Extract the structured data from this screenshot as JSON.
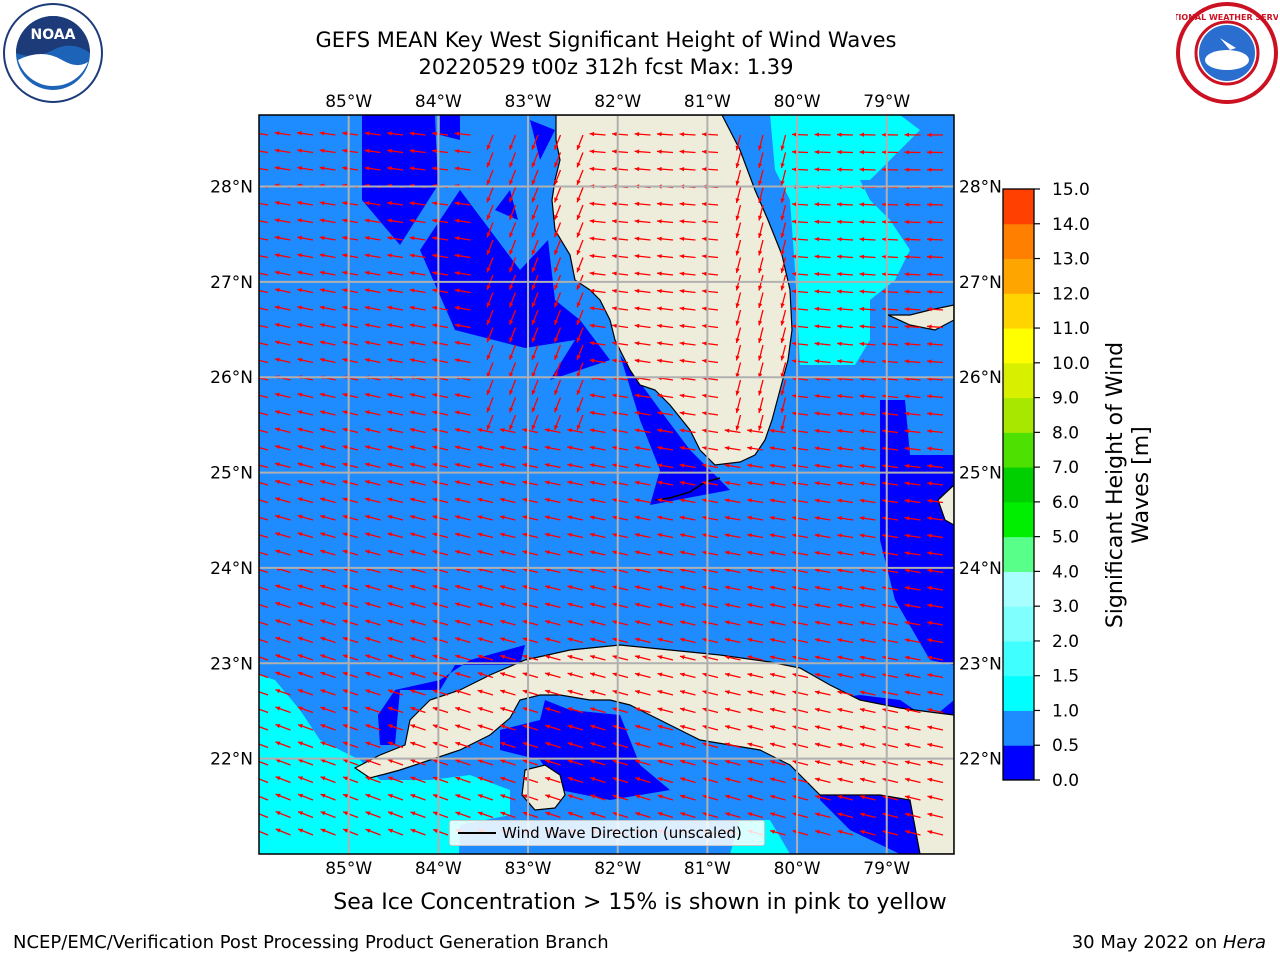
{
  "title": {
    "line1": "GEFS MEAN Key West Significant Height of Wind Waves",
    "line2": "20220529 t00z 312h fcst   Max: 1.39"
  },
  "logos": {
    "left": "noaa-logo",
    "right": "nws-logo",
    "left_text": "NOAA",
    "right_text": "NATIONAL WEATHER SERVICE"
  },
  "map": {
    "lon_labels": [
      "85°W",
      "84°W",
      "83°W",
      "82°W",
      "81°W",
      "80°W",
      "79°W"
    ],
    "lat_labels": [
      "28°N",
      "27°N",
      "26°N",
      "25°N",
      "24°N",
      "23°N",
      "22°N"
    ],
    "lon_values": [
      -85,
      -84,
      -83,
      -82,
      -81,
      -80,
      -79
    ],
    "lat_values": [
      28,
      27,
      26,
      25,
      24,
      23,
      22
    ],
    "extent": {
      "lon_min": -86.0,
      "lon_max": -78.25,
      "lat_min": 21.0,
      "lat_max": 28.75
    },
    "arrow_color": "#ff0000",
    "land_color": "#eeeddc",
    "gridline_color": "#b0b0b0"
  },
  "legend": {
    "label": "Wind Wave Direction (unscaled)"
  },
  "colorbar": {
    "title": "Significant Height of Wind Waves [m]",
    "ticks": [
      "0.0",
      "0.5",
      "1.0",
      "1.5",
      "2.0",
      "3.0",
      "4.0",
      "5.0",
      "6.0",
      "7.0",
      "8.0",
      "9.0",
      "10.0",
      "11.0",
      "12.0",
      "13.0",
      "14.0",
      "15.0"
    ],
    "colors": [
      "#0000ff",
      "#1e8cff",
      "#00ffff",
      "#40ffff",
      "#80ffff",
      "#a8ffff",
      "#58ff88",
      "#00ef00",
      "#00d000",
      "#4ee000",
      "#a8e800",
      "#d8f000",
      "#ffff00",
      "#ffd400",
      "#ffa500",
      "#ff7f00",
      "#ff4000",
      "#ff0000"
    ]
  },
  "footnote": "Sea Ice Concentration > 15% is shown in pink to yellow",
  "footer": {
    "left": "NCEP/EMC/Verification Post Processing Product Generation Branch",
    "right_prefix": "30 May 2022 on ",
    "right_host": "Hera"
  }
}
